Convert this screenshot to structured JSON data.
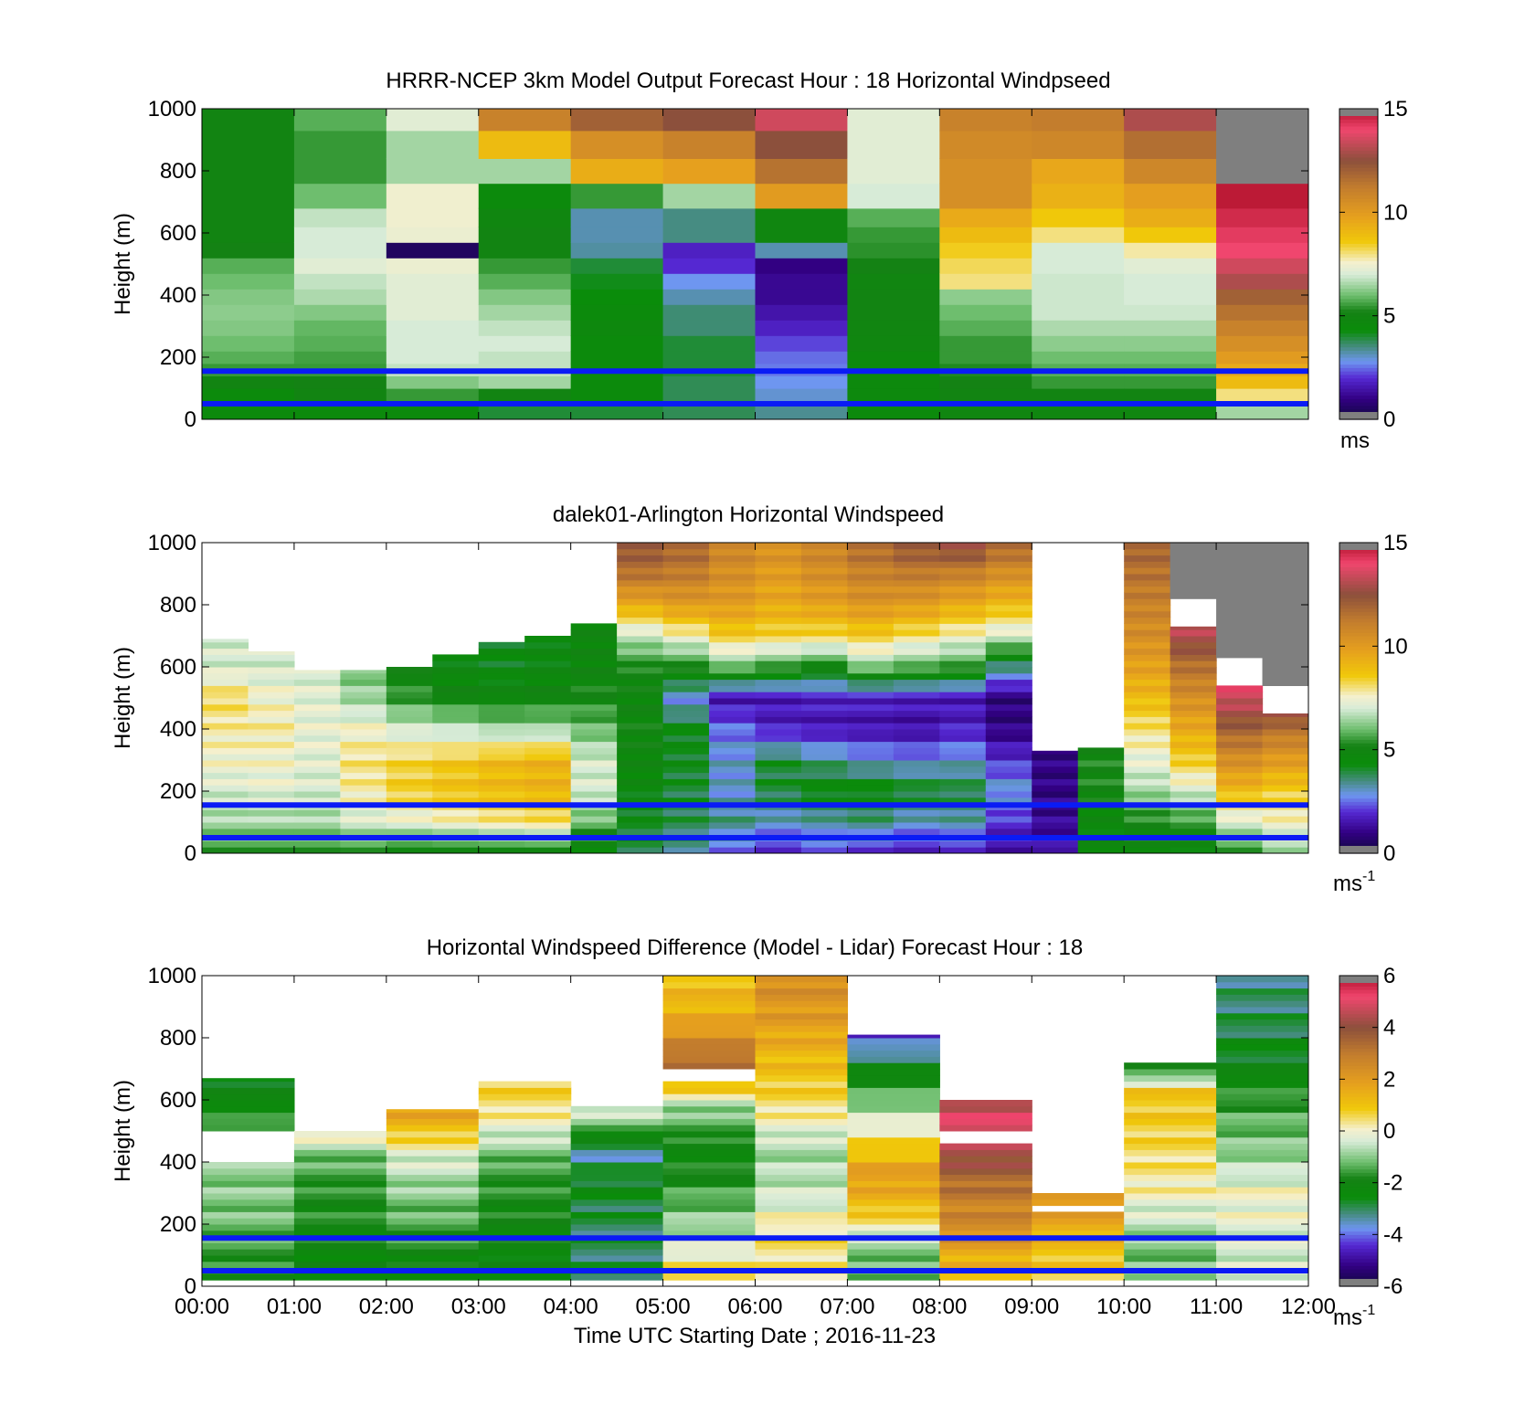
{
  "chart_data": [
    {
      "type": "heatmap",
      "title": "HRRR-NCEP 3km Model Output   Forecast Hour : 18 Horizontal Windpseed",
      "ylabel": "Height (m)",
      "ylim": [
        0,
        1000
      ],
      "yticks": [
        "0",
        "200",
        "400",
        "600",
        "800",
        "1000"
      ],
      "xlim_hours": [
        0,
        12
      ],
      "colorbar": {
        "min": 0,
        "max": 15,
        "ticks": [
          "0",
          "5",
          "10",
          "15"
        ],
        "unit_base": "ms",
        "unit_exp": ""
      },
      "reference_lines_m": [
        155,
        50
      ],
      "heights_m": [
        0,
        60,
        100,
        140,
        180,
        220,
        270,
        320,
        370,
        420,
        470,
        520,
        570,
        620,
        680,
        760,
        840,
        930,
        1000
      ],
      "speed_ms_by_hour": [
        [
          4.5,
          4.5,
          5.0,
          5.5,
          5.8,
          6.0,
          6.2,
          6.3,
          6.2,
          6.0,
          5.8,
          5.2,
          5.0,
          5.0,
          5.0,
          5.0,
          5.0,
          5.0
        ],
        [
          4.5,
          5.0,
          5.2,
          5.5,
          5.6,
          5.8,
          5.9,
          6.2,
          6.6,
          6.8,
          7.2,
          7.0,
          7.0,
          6.8,
          6.0,
          5.5,
          5.5,
          5.8
        ],
        [
          4.5,
          5.5,
          6.2,
          6.8,
          7.0,
          7.0,
          7.0,
          7.2,
          7.2,
          7.2,
          7.4,
          0.5,
          7.4,
          7.5,
          7.5,
          6.5,
          6.5,
          7.2
        ],
        [
          4.0,
          5.0,
          6.5,
          6.8,
          6.8,
          7.0,
          6.8,
          6.5,
          6.2,
          5.8,
          5.5,
          5.0,
          5.0,
          4.8,
          4.5,
          6.5,
          9.0,
          11.0
        ],
        [
          4.0,
          4.5,
          4.5,
          4.5,
          4.5,
          4.5,
          4.7,
          4.5,
          4.3,
          4.2,
          4.0,
          3.3,
          3.2,
          3.2,
          5.5,
          9.4,
          10.5,
          12.0
        ],
        [
          3.8,
          3.8,
          3.8,
          4.0,
          4.0,
          4.0,
          3.6,
          3.6,
          3.2,
          2.8,
          2.0,
          1.8,
          3.5,
          3.5,
          6.5,
          9.8,
          11.0,
          12.5
        ],
        [
          3.4,
          3.0,
          2.8,
          2.6,
          2.5,
          2.2,
          1.8,
          1.5,
          1.2,
          1.2,
          1.0,
          3.2,
          4.8,
          4.8,
          10.0,
          11.5,
          12.5,
          13.5
        ],
        [
          4.5,
          4.6,
          4.6,
          4.6,
          4.6,
          4.8,
          4.9,
          5.0,
          5.0,
          4.9,
          5.2,
          5.4,
          5.5,
          5.8,
          7.0,
          7.2,
          7.2,
          7.2
        ],
        [
          4.8,
          5.0,
          5.2,
          5.3,
          5.5,
          5.5,
          5.8,
          6.0,
          6.3,
          8.0,
          8.2,
          8.5,
          9.0,
          9.5,
          10.5,
          10.5,
          10.7,
          11.0
        ],
        [
          4.8,
          5.0,
          5.5,
          5.8,
          6.0,
          6.3,
          6.6,
          6.9,
          6.9,
          6.9,
          7.0,
          7.0,
          8.0,
          8.6,
          9.3,
          9.6,
          10.8,
          11.2
        ],
        [
          4.8,
          5.0,
          5.5,
          5.8,
          6.0,
          6.3,
          6.6,
          6.9,
          7.0,
          7.0,
          7.2,
          7.8,
          8.6,
          9.4,
          9.9,
          10.8,
          11.6,
          13.0
        ],
        [
          6.5,
          8.0,
          9.0,
          9.5,
          10.0,
          10.5,
          11.0,
          11.5,
          12.0,
          13.0,
          13.5,
          14.0,
          14.2,
          14.5,
          14.8,
          15.5,
          15.5,
          15.5
        ]
      ]
    },
    {
      "type": "heatmap",
      "title": "dalek01-Arlington  Horizontal Windspeed",
      "ylabel": "Height (m)",
      "ylim": [
        0,
        1000
      ],
      "yticks": [
        "0",
        "200",
        "400",
        "600",
        "800",
        "1000"
      ],
      "xlim_hours": [
        0,
        12
      ],
      "colorbar": {
        "min": 0,
        "max": 15,
        "ticks": [
          "0",
          "5",
          "10",
          "15"
        ],
        "unit_base": "ms",
        "unit_exp": "-1"
      },
      "reference_lines_m": [
        155,
        50
      ],
      "time_hours": [
        0.25,
        0.75,
        1.25,
        1.75,
        2.25,
        2.75,
        3.25,
        3.75,
        4.25,
        4.75,
        5.25,
        5.75,
        6.25,
        6.75,
        7.25,
        7.75,
        8.25,
        8.75,
        9.25,
        9.75,
        10.25,
        10.75,
        11.25,
        11.75
      ],
      "top_of_data_m": [
        690,
        650,
        590,
        590,
        600,
        640,
        680,
        700,
        740,
        1000,
        1000,
        1000,
        1000,
        1000,
        1000,
        1000,
        1000,
        1000,
        330,
        340,
        1000,
        730,
        540,
        450
      ],
      "profile_heights_m": [
        0,
        100,
        200,
        300,
        400,
        500,
        600,
        700,
        800,
        900,
        1000
      ],
      "speed_profiles_ms": [
        [
          5.5,
          6.5,
          7.0,
          7.5,
          7.8,
          8.2,
          7.0,
          7.0,
          7.0,
          7.0,
          7.0
        ],
        [
          5.5,
          6.5,
          7.2,
          7.5,
          7.8,
          7.5,
          7.0,
          7.0,
          7.0,
          7.0,
          7.0
        ],
        [
          5.5,
          6.5,
          7.0,
          7.2,
          7.3,
          7.2,
          7.0,
          7.0,
          7.0,
          7.0,
          7.0
        ],
        [
          5.5,
          7.0,
          7.8,
          8.0,
          7.5,
          6.5,
          6.0,
          6.0,
          6.0,
          6.0,
          6.0
        ],
        [
          5.0,
          7.2,
          8.5,
          8.3,
          7.0,
          5.5,
          4.8,
          4.8,
          4.8,
          4.8,
          4.8
        ],
        [
          5.0,
          7.5,
          8.8,
          8.6,
          6.8,
          5.0,
          4.5,
          4.5,
          4.5,
          4.5,
          4.5
        ],
        [
          5.0,
          7.8,
          9.0,
          9.0,
          6.5,
          4.8,
          4.3,
          4.3,
          4.3,
          4.3,
          4.3
        ],
        [
          5.0,
          8.0,
          9.2,
          9.2,
          6.5,
          5.0,
          4.5,
          4.5,
          4.5,
          4.5,
          4.5
        ],
        [
          4.5,
          6.0,
          7.0,
          7.0,
          6.0,
          5.2,
          4.8,
          4.8,
          4.8,
          4.8,
          4.8
        ],
        [
          4.0,
          4.2,
          4.5,
          4.8,
          5.0,
          4.8,
          5.2,
          6.8,
          9.5,
          11.5,
          12.5
        ],
        [
          3.5,
          3.8,
          4.0,
          4.2,
          4.3,
          2.8,
          5.2,
          7.5,
          10.0,
          11.2,
          12.0
        ],
        [
          2.5,
          3.5,
          3.0,
          3.0,
          2.5,
          1.5,
          6.0,
          8.5,
          10.0,
          10.5,
          11.0
        ],
        [
          2.0,
          3.0,
          4.0,
          4.0,
          1.8,
          1.6,
          5.5,
          8.3,
          9.5,
          10.0,
          10.5
        ],
        [
          2.5,
          3.2,
          4.5,
          3.5,
          1.6,
          1.8,
          5.0,
          8.2,
          9.8,
          10.5,
          11.0
        ],
        [
          2.0,
          3.5,
          4.5,
          3.0,
          1.5,
          1.8,
          6.2,
          8.5,
          10.2,
          11.0,
          11.8
        ],
        [
          1.8,
          3.0,
          4.2,
          2.8,
          1.4,
          1.7,
          5.8,
          8.0,
          10.0,
          11.2,
          12.5
        ],
        [
          2.0,
          3.2,
          4.0,
          3.0,
          1.8,
          1.6,
          5.5,
          7.5,
          9.5,
          11.0,
          13.0
        ],
        [
          1.5,
          2.0,
          3.0,
          2.0,
          1.0,
          0.9,
          3.5,
          7.0,
          9.0,
          10.5,
          12.0
        ],
        [
          1.8,
          1.2,
          1.0,
          1.0,
          1.0,
          1.0,
          1.0,
          1.0,
          1.0,
          1.0,
          1.0
        ],
        [
          4.8,
          4.5,
          5.2,
          5.2,
          5.2,
          5.2,
          5.2,
          5.2,
          5.2,
          5.2,
          5.2
        ],
        [
          4.8,
          5.2,
          6.5,
          7.3,
          8.0,
          9.0,
          9.8,
          10.5,
          11.0,
          11.5,
          12.0
        ],
        [
          4.5,
          5.5,
          7.0,
          8.5,
          9.5,
          10.5,
          11.5,
          13.0,
          14.0,
          14.0,
          14.0
        ],
        [
          5.5,
          7.0,
          9.0,
          10.5,
          12.0,
          13.5,
          14.5,
          14.5,
          14.5,
          14.5,
          14.5
        ],
        [
          6.5,
          7.5,
          8.5,
          10.0,
          11.5,
          14.0,
          14.5,
          14.5,
          14.5,
          14.5,
          14.5
        ]
      ]
    },
    {
      "type": "heatmap",
      "title": "Horizontal Windspeed Difference (Model - Lidar) Forecast Hour : 18",
      "xlabel": "Time UTC  Starting Date ; 2016-11-23",
      "ylabel": "Height (m)",
      "ylim": [
        0,
        1000
      ],
      "yticks": [
        "0",
        "200",
        "400",
        "600",
        "800",
        "1000"
      ],
      "xlim_hours": [
        0,
        12
      ],
      "xticks": [
        "00:00",
        "01:00",
        "02:00",
        "03:00",
        "04:00",
        "05:00",
        "06:00",
        "07:00",
        "08:00",
        "09:00",
        "10:00",
        "11:00",
        "12:00"
      ],
      "colorbar": {
        "min": -6,
        "max": 6,
        "ticks": [
          "-6",
          "-4",
          "-2",
          "0",
          "2",
          "4",
          "6"
        ],
        "unit_base": "ms",
        "unit_exp": "-1"
      },
      "reference_lines_m": [
        155,
        50
      ],
      "hourly_blocks": [
        {
          "hour": 0,
          "top_m": 670,
          "gaps_m": [
            [
              400,
              500
            ]
          ],
          "diff_ms": [
            -2.0,
            -1.6,
            -1.2,
            -1.0,
            -1.0,
            -1.2,
            -2.2,
            -2.5
          ]
        },
        {
          "hour": 1,
          "top_m": 500,
          "gaps_m": [],
          "diff_ms": [
            -2.5,
            -2.2,
            -2.0,
            -1.8,
            -1.8,
            -1.5,
            -1.0,
            0.8
          ]
        },
        {
          "hour": 2,
          "top_m": 570,
          "gaps_m": [],
          "diff_ms": [
            -2.5,
            -2.0,
            -1.5,
            -1.2,
            -0.8,
            -0.3,
            1.0,
            2.0
          ]
        },
        {
          "hour": 3,
          "top_m": 660,
          "gaps_m": [],
          "diff_ms": [
            -2.5,
            -2.2,
            -2.0,
            -1.8,
            -1.5,
            -0.5,
            0.5,
            0.8
          ]
        },
        {
          "hour": 4,
          "top_m": 580,
          "gaps_m": [],
          "diff_ms": [
            -3.0,
            -3.0,
            -3.0,
            -2.8,
            -2.5,
            -3.5,
            -1.5,
            0.2
          ]
        },
        {
          "hour": 5,
          "top_m": 1000,
          "gaps_m": [
            [
              655,
              690
            ]
          ],
          "diff_ms": [
            1.0,
            -0.5,
            -1.5,
            -2.2,
            -0.8,
            3.5,
            1.5,
            1.0
          ]
        },
        {
          "hour": 6,
          "top_m": 1000,
          "gaps_m": [],
          "diff_ms": [
            0.2,
            0.5,
            -0.5,
            -0.8,
            0.5,
            1.2,
            2.0,
            2.5
          ]
        },
        {
          "hour": 7,
          "top_m": 810,
          "gaps_m": [],
          "diff_ms": [
            -1.5,
            -1.0,
            1.0,
            2.0,
            0.5,
            -1.0,
            -2.5,
            -4.5
          ]
        },
        {
          "hour": 8,
          "top_m": 600,
          "gaps_m": [
            [
              455,
              500
            ]
          ],
          "diff_ms": [
            1.0,
            1.5,
            2.5,
            2.8,
            3.5,
            4.5,
            5.0,
            4.5
          ]
        },
        {
          "hour": 9,
          "top_m": 300,
          "gaps_m": [
            [
              230,
              255
            ]
          ],
          "diff_ms": [
            0.5,
            0.8,
            1.0,
            1.2,
            1.5,
            1.8,
            2.0,
            2.0
          ]
        },
        {
          "hour": 10,
          "top_m": 720,
          "gaps_m": [],
          "diff_ms": [
            -1.0,
            -1.2,
            -0.5,
            0.2,
            0.5,
            0.8,
            1.0,
            -3.0
          ]
        },
        {
          "hour": 11,
          "top_m": 1000,
          "gaps_m": [],
          "diff_ms": [
            -0.5,
            -0.3,
            0.0,
            -1.0,
            -1.5,
            -2.5,
            -3.0,
            -3.2
          ]
        }
      ]
    }
  ]
}
